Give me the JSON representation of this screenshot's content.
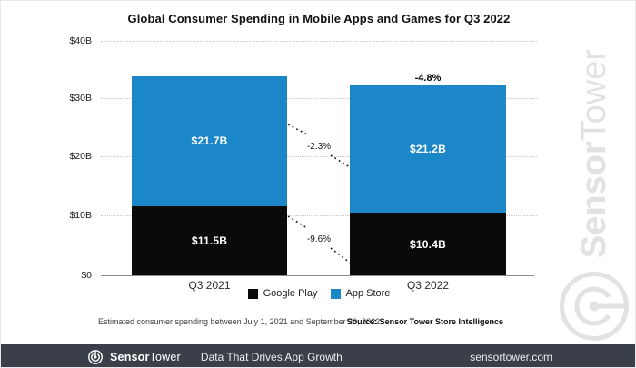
{
  "chart_data": {
    "type": "bar",
    "stacked": true,
    "title": "Global Consumer Spending in Mobile Apps and Games for Q3 2022",
    "categories": [
      "Q3 2021",
      "Q3 2022"
    ],
    "series": [
      {
        "name": "Google Play",
        "color": "#0a0a0a",
        "values": [
          11.5,
          10.4
        ],
        "labels": [
          "$11.5B",
          "$10.4B"
        ]
      },
      {
        "name": "App Store",
        "color": "#1b87c9",
        "values": [
          21.7,
          21.2
        ],
        "labels": [
          "$21.7B",
          "$21.2B"
        ]
      }
    ],
    "unit": "USD billions",
    "ylim": [
      0,
      40
    ],
    "yticks": [
      "$40B",
      "$30B",
      "$20B",
      "$10B",
      "$0"
    ],
    "grid": "horizontal-dotted",
    "legend_position": "bottom",
    "annotations": {
      "total_change": "-4.8%",
      "app_store_change": "-2.3%",
      "google_play_change": "-9.6%"
    }
  },
  "footnote": "Estimated consumer spending between July 1, 2021 and September 30, 2022.",
  "source": "Source: Sensor Tower Store Intelligence",
  "watermark": {
    "brand_bold": "Sensor",
    "brand_light": "Tower"
  },
  "footer": {
    "brand_bold": "Sensor",
    "brand_light": "Tower",
    "tagline": "Data That Drives App Growth",
    "website": "sensortower.com",
    "bg_color": "#3a3f4a"
  },
  "colors": {
    "brand_blue": "#1b87c9",
    "bar_black": "#0a0a0a",
    "watermark_gray": "#e2e2e2"
  }
}
